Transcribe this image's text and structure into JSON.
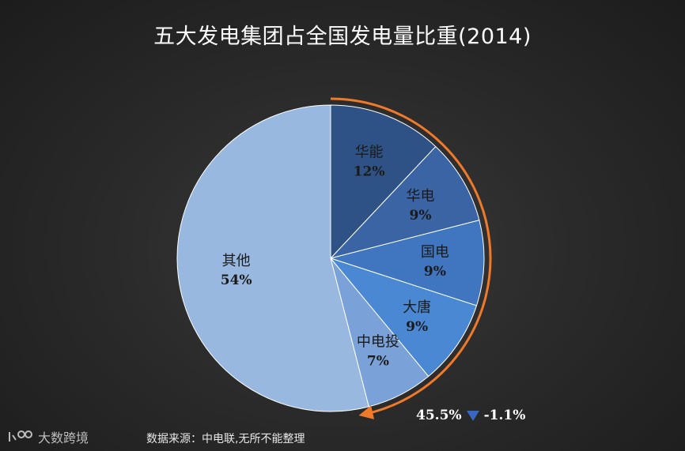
{
  "title": "五大发电集团占全国发电量比重(2014)",
  "chart_data": {
    "type": "pie",
    "title": "五大发电集团占全国发电量比重(2014)",
    "slices": [
      {
        "label": "华能",
        "value": 12,
        "pct_text": "12%",
        "color": "#2f5286"
      },
      {
        "label": "华电",
        "value": 9,
        "pct_text": "9%",
        "color": "#3a64a4"
      },
      {
        "label": "国电",
        "value": 9,
        "pct_text": "9%",
        "color": "#3f76bf"
      },
      {
        "label": "大唐",
        "value": 9,
        "pct_text": "9%",
        "color": "#4a88d4"
      },
      {
        "label": "中电投",
        "value": 7,
        "pct_text": "7%",
        "color": "#7aa2d8"
      },
      {
        "label": "其他",
        "value": 54,
        "pct_text": "54%",
        "color": "#99b8e0"
      }
    ],
    "annotation": {
      "total_text": "45.5%",
      "change_text": "-1.1%",
      "arc_color": "#f07a2a",
      "change_icon": "down-triangle-icon",
      "change_icon_color": "#3a66c4"
    }
  },
  "source": "数据来源：中电联,无所不能整理",
  "brand": {
    "name": "大数跨境",
    "icon": "brand-logo-icon"
  }
}
